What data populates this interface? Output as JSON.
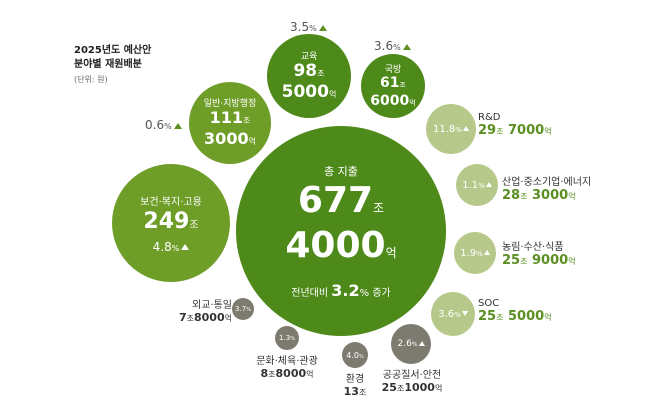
{
  "title": {
    "line1": "2025년도 예산안",
    "line2": "분야별 재원배분",
    "unit": "(단위: 원)"
  },
  "total": {
    "label": "총 지출",
    "jo": "677",
    "eok": "4000",
    "jo_unit": "조",
    "eok_unit": "억",
    "growth_prefix": "전년대비",
    "growth": "3.2",
    "growth_suffix": "증가",
    "pct_unit": "%"
  },
  "units": {
    "jo": "조",
    "eok": "억",
    "pct": "%"
  },
  "sectors": [
    {
      "name": "보건·복지·고용",
      "jo": "249",
      "eok": "",
      "pct": "4.8",
      "dir": "up"
    },
    {
      "name": "일반·지방행정",
      "jo": "111",
      "eok": "3000",
      "pct": "0.6",
      "dir": "up"
    },
    {
      "name": "교육",
      "jo": "98",
      "eok": "5000",
      "pct": "3.5",
      "dir": "up"
    },
    {
      "name": "국방",
      "jo": "61",
      "eok": "6000",
      "pct": "3.6",
      "dir": "up"
    },
    {
      "name": "R&D",
      "jo": "29",
      "eok": "7000",
      "pct": "11.8",
      "dir": "up"
    },
    {
      "name": "산업·중소기업·에너지",
      "jo": "28",
      "eok": "3000",
      "pct": "1.1",
      "dir": "up"
    },
    {
      "name": "농림·수산·식품",
      "jo": "25",
      "eok": "9000",
      "pct": "1.9",
      "dir": "up"
    },
    {
      "name": "SOC",
      "jo": "25",
      "eok": "5000",
      "pct": "3.6",
      "dir": "down"
    },
    {
      "name": "공공질서·안전",
      "jo": "25",
      "eok": "1000",
      "pct": "2.6",
      "dir": "up"
    },
    {
      "name": "환경",
      "jo": "13",
      "eok": "",
      "pct": "4.0",
      "dir": "up"
    },
    {
      "name": "문화·체육·관광",
      "jo": "8",
      "eok": "8000",
      "pct": "1.3",
      "dir": "up"
    },
    {
      "name": "외교·통일",
      "jo": "7",
      "eok": "8000",
      "pct": "3.7",
      "dir": "up"
    }
  ],
  "colors": {
    "dark": "#4e8a1a",
    "mid": "#6f9e28",
    "light": "#b7c98a",
    "grey": "#7d7a70",
    "accent": "#5b8f22"
  }
}
